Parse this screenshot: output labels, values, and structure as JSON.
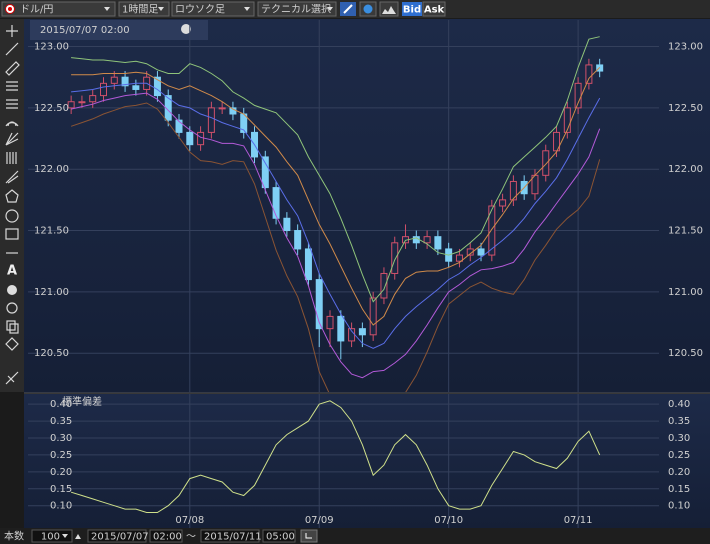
{
  "toolbar": {
    "pair": "ドル/円",
    "timeframe": "1時間足",
    "chart_style": "ロウソク足",
    "technical": "テクニカル選択",
    "bid": "Bid",
    "ask": "Ask"
  },
  "cursor_time": "2015/07/07 02:00",
  "left_toolbar": {
    "text_tool": "A"
  },
  "footer": {
    "count_label": "本数",
    "count": 100,
    "from_date": "2015/07/07",
    "from_time": "02:00",
    "range_sep": "〜",
    "to_date": "2015/07/11",
    "to_time": "05:00"
  },
  "chart_data": [
    {
      "type": "candlestick",
      "x": [
        2,
        4,
        6,
        8,
        10,
        12,
        14,
        16,
        18,
        20,
        22,
        24,
        26,
        28,
        30,
        32,
        34,
        36,
        38,
        40,
        42,
        44,
        46,
        48,
        50,
        52,
        54,
        56,
        58,
        60,
        62,
        64,
        66,
        68,
        70,
        72,
        74,
        76,
        78,
        80,
        82,
        84,
        86,
        88,
        90,
        92,
        94,
        96,
        98,
        100
      ],
      "open": [
        122.5,
        122.55,
        122.55,
        122.6,
        122.7,
        122.75,
        122.68,
        122.65,
        122.75,
        122.6,
        122.4,
        122.3,
        122.2,
        122.3,
        122.5,
        122.5,
        122.45,
        122.3,
        122.1,
        121.85,
        121.6,
        121.5,
        121.35,
        121.1,
        120.7,
        120.8,
        120.6,
        120.7,
        120.65,
        120.95,
        121.15,
        121.4,
        121.45,
        121.4,
        121.45,
        121.35,
        121.25,
        121.3,
        121.35,
        121.3,
        121.7,
        121.75,
        121.9,
        121.8,
        121.95,
        122.15,
        122.3,
        122.5,
        122.7,
        122.85
      ],
      "high": [
        122.6,
        122.6,
        122.65,
        122.75,
        122.8,
        122.8,
        122.73,
        122.8,
        122.8,
        122.65,
        122.45,
        122.35,
        122.35,
        122.55,
        122.55,
        122.55,
        122.5,
        122.35,
        122.15,
        121.9,
        121.65,
        121.55,
        121.4,
        121.15,
        120.85,
        120.85,
        120.75,
        120.75,
        121.0,
        121.2,
        121.45,
        121.55,
        121.5,
        121.5,
        121.5,
        121.4,
        121.35,
        121.4,
        121.4,
        121.75,
        121.8,
        121.95,
        121.95,
        122.0,
        122.2,
        122.35,
        122.55,
        122.75,
        122.9,
        122.9
      ],
      "low": [
        122.45,
        122.5,
        122.5,
        122.55,
        122.65,
        122.63,
        122.6,
        122.6,
        122.55,
        122.35,
        122.25,
        122.15,
        122.15,
        122.25,
        122.45,
        122.4,
        122.25,
        122.05,
        121.8,
        121.55,
        121.45,
        121.3,
        121.05,
        120.55,
        120.55,
        120.45,
        120.55,
        120.55,
        120.6,
        120.9,
        121.1,
        121.35,
        121.35,
        121.35,
        121.3,
        121.2,
        121.2,
        121.25,
        121.25,
        121.25,
        121.65,
        121.7,
        121.75,
        121.75,
        121.9,
        122.1,
        122.25,
        122.45,
        122.65,
        122.75
      ],
      "close": [
        122.55,
        122.55,
        122.6,
        122.7,
        122.75,
        122.68,
        122.65,
        122.75,
        122.6,
        122.4,
        122.3,
        122.2,
        122.3,
        122.5,
        122.5,
        122.45,
        122.3,
        122.1,
        121.85,
        121.6,
        121.5,
        121.35,
        121.1,
        120.7,
        120.8,
        120.6,
        120.7,
        120.65,
        120.95,
        121.15,
        121.4,
        121.45,
        121.4,
        121.45,
        121.35,
        121.25,
        121.3,
        121.35,
        121.3,
        121.7,
        121.75,
        121.9,
        121.8,
        121.95,
        122.15,
        122.3,
        122.5,
        122.7,
        122.85,
        122.8
      ],
      "up_color": "#d0506a",
      "down_color": "#7fd0f5",
      "series": [
        {
          "color": "#8fc47a",
          "values": [
            122.91,
            122.9,
            122.89,
            122.89,
            122.88,
            122.87,
            122.88,
            122.86,
            122.81,
            122.78,
            122.78,
            122.86,
            122.83,
            122.78,
            122.72,
            122.63,
            122.58,
            122.52,
            122.49,
            122.46,
            122.37,
            122.28,
            122.1,
            121.95,
            121.8,
            121.6,
            121.38,
            121.14,
            120.92,
            121.02,
            121.26,
            121.42,
            121.44,
            121.39,
            121.32,
            121.3,
            121.33,
            121.4,
            121.48,
            121.67,
            121.84,
            122.02,
            122.1,
            122.18,
            122.26,
            122.35,
            122.56,
            122.83,
            123.06,
            123.08
          ]
        },
        {
          "color": "#d08a4a",
          "values": [
            122.77,
            122.77,
            122.77,
            122.78,
            122.78,
            122.78,
            122.79,
            122.78,
            122.73,
            122.68,
            122.65,
            122.68,
            122.64,
            122.6,
            122.55,
            122.49,
            122.45,
            122.36,
            122.27,
            122.18,
            122.06,
            121.95,
            121.75,
            121.55,
            121.39,
            121.21,
            121.03,
            120.86,
            120.73,
            120.8,
            120.98,
            121.11,
            121.16,
            121.17,
            121.17,
            121.2,
            121.24,
            121.31,
            121.38,
            121.51,
            121.63,
            121.76,
            121.85,
            121.95,
            122.04,
            122.14,
            122.32,
            122.54,
            122.74,
            122.83
          ]
        },
        {
          "color": "#5a6ee8",
          "values": [
            122.63,
            122.64,
            122.65,
            122.67,
            122.68,
            122.69,
            122.7,
            122.7,
            122.65,
            122.58,
            122.52,
            122.5,
            122.45,
            122.42,
            122.38,
            122.35,
            122.32,
            122.2,
            122.05,
            121.9,
            121.75,
            121.62,
            121.4,
            121.15,
            120.98,
            120.82,
            120.68,
            120.58,
            120.54,
            120.58,
            120.7,
            120.8,
            120.88,
            120.95,
            121.02,
            121.1,
            121.15,
            121.22,
            121.28,
            121.35,
            121.42,
            121.5,
            121.6,
            121.72,
            121.82,
            121.93,
            122.08,
            122.25,
            122.42,
            122.58
          ]
        },
        {
          "color": "#b35ad8",
          "values": [
            122.49,
            122.51,
            122.53,
            122.56,
            122.58,
            122.6,
            122.61,
            122.62,
            122.57,
            122.48,
            122.39,
            122.32,
            122.26,
            122.24,
            122.21,
            122.21,
            122.19,
            122.04,
            121.83,
            121.62,
            121.44,
            121.29,
            121.05,
            120.75,
            120.57,
            120.43,
            120.33,
            120.3,
            120.35,
            120.36,
            120.42,
            120.49,
            120.6,
            120.73,
            120.87,
            121.0,
            121.06,
            121.13,
            121.18,
            121.19,
            121.21,
            121.24,
            121.35,
            121.49,
            121.6,
            121.72,
            121.84,
            121.96,
            122.1,
            122.33
          ]
        },
        {
          "color": "#8a5434",
          "values": [
            122.35,
            122.38,
            122.41,
            122.45,
            122.48,
            122.51,
            122.52,
            122.54,
            122.49,
            122.38,
            122.26,
            122.14,
            122.07,
            122.06,
            122.04,
            122.07,
            122.06,
            121.88,
            121.61,
            121.34,
            121.13,
            120.96,
            120.7,
            120.35,
            120.16,
            120.04,
            119.98,
            120.02,
            120.16,
            120.14,
            120.14,
            120.18,
            120.32,
            120.51,
            120.72,
            120.9,
            120.97,
            121.04,
            121.08,
            121.03,
            121.0,
            120.98,
            121.1,
            121.26,
            121.38,
            121.51,
            121.6,
            121.67,
            121.78,
            122.08
          ]
        }
      ],
      "xlim": [
        -6,
        111
      ],
      "ylim": [
        120.2,
        123.2
      ],
      "yticks": [
        {
          "value": 120.5,
          "label": "120.50"
        },
        {
          "value": 121,
          "label": "121.00"
        },
        {
          "value": 121.5,
          "label": "121.50"
        },
        {
          "value": 122,
          "label": "122.00"
        },
        {
          "value": 122.5,
          "label": "122.50"
        },
        {
          "value": 123,
          "label": "123.00"
        }
      ],
      "grid": true
    },
    {
      "type": "line",
      "title": "標準偏差",
      "x": [
        2,
        4,
        6,
        8,
        10,
        12,
        14,
        16,
        18,
        20,
        22,
        24,
        26,
        28,
        30,
        32,
        34,
        36,
        38,
        40,
        42,
        44,
        46,
        48,
        50,
        52,
        54,
        56,
        58,
        60,
        62,
        64,
        66,
        68,
        70,
        72,
        74,
        76,
        78,
        80,
        82,
        84,
        86,
        88,
        90,
        92,
        94,
        96,
        98,
        100
      ],
      "series": [
        {
          "color": "#cfe08a",
          "values": [
            0.14,
            0.13,
            0.12,
            0.11,
            0.1,
            0.09,
            0.09,
            0.08,
            0.08,
            0.1,
            0.13,
            0.18,
            0.19,
            0.18,
            0.17,
            0.14,
            0.13,
            0.16,
            0.22,
            0.28,
            0.31,
            0.33,
            0.35,
            0.4,
            0.41,
            0.39,
            0.35,
            0.28,
            0.19,
            0.22,
            0.28,
            0.31,
            0.28,
            0.22,
            0.15,
            0.1,
            0.09,
            0.09,
            0.1,
            0.16,
            0.21,
            0.26,
            0.25,
            0.23,
            0.22,
            0.21,
            0.24,
            0.29,
            0.32,
            0.25
          ]
        }
      ],
      "xlim": [
        -6,
        111
      ],
      "ylim": [
        0.04,
        0.43
      ],
      "yticks": [
        {
          "value": 0.1,
          "label": "0.10"
        },
        {
          "value": 0.15,
          "label": "0.15"
        },
        {
          "value": 0.2,
          "label": "0.20"
        },
        {
          "value": 0.25,
          "label": "0.25"
        },
        {
          "value": 0.3,
          "label": "0.30"
        },
        {
          "value": 0.35,
          "label": "0.35"
        },
        {
          "value": 0.4,
          "label": "0.40"
        }
      ],
      "xticks": [
        {
          "value": 24,
          "label": "07/08"
        },
        {
          "value": 48,
          "label": "07/09"
        },
        {
          "value": 72,
          "label": "07/10"
        },
        {
          "value": 96,
          "label": "07/11"
        }
      ],
      "grid": true
    }
  ]
}
